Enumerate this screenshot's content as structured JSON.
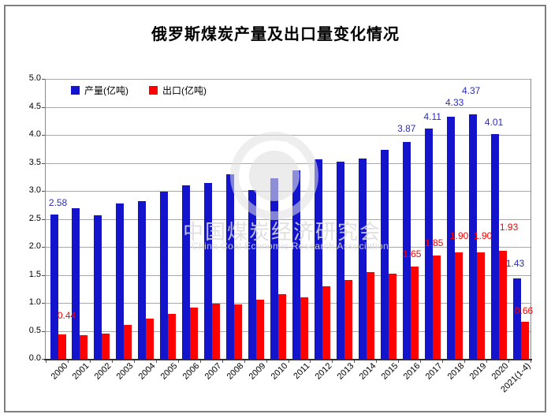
{
  "chart_data": {
    "type": "bar",
    "title": "俄罗斯煤炭产量及出口量变化情况",
    "categories": [
      "2000",
      "2001",
      "2002",
      "2003",
      "2004",
      "2005",
      "2006",
      "2007",
      "2008",
      "2009",
      "2010",
      "2011",
      "2012",
      "2013",
      "2014",
      "2015",
      "2016",
      "2017",
      "2018",
      "2019",
      "2020",
      "2021(1-4)"
    ],
    "series": [
      {
        "name": "产量(亿吨)",
        "color": "#1414CC",
        "label_color": "#2B2BC8",
        "values": [
          2.58,
          2.69,
          2.56,
          2.77,
          2.82,
          2.99,
          3.1,
          3.14,
          3.29,
          3.01,
          3.23,
          3.36,
          3.56,
          3.52,
          3.58,
          3.73,
          3.87,
          4.11,
          4.33,
          4.37,
          4.01,
          1.43
        ],
        "labels": {
          "0": "2.58",
          "16": "3.87",
          "17": "4.11",
          "18": "4.33",
          "19": "4.37",
          "20": "4.01",
          "21": "1.43"
        }
      },
      {
        "name": "出口(亿吨)",
        "color": "#FF0000",
        "label_color": "#FF0000",
        "values": [
          0.44,
          0.42,
          0.45,
          0.61,
          0.72,
          0.8,
          0.92,
          0.98,
          0.97,
          1.05,
          1.16,
          1.1,
          1.3,
          1.41,
          1.55,
          1.52,
          1.65,
          1.85,
          1.9,
          1.9,
          1.93,
          0.66
        ],
        "labels": {
          "0": "0.44",
          "16": "1.65",
          "17": "1.85",
          "18": "1.90",
          "19": "1.90",
          "20": "1.93",
          "21": "0.66"
        }
      }
    ],
    "ylim": [
      0,
      5
    ],
    "ytick_step": 0.5,
    "ytick_labels": [
      "0.0",
      "0.5",
      "1.0",
      "1.5",
      "2.0",
      "2.5",
      "3.0",
      "3.5",
      "4.0",
      "4.5",
      "5.0"
    ],
    "grid": true,
    "legend_position": "top-left-inside"
  },
  "watermark": {
    "cn": "中国煤炭经济研究会",
    "en": "China Coal Economic Research Association",
    "badge": "ERA"
  },
  "frame_border_color": "#7F7F7F",
  "gridline_color": "#A8A8A8"
}
